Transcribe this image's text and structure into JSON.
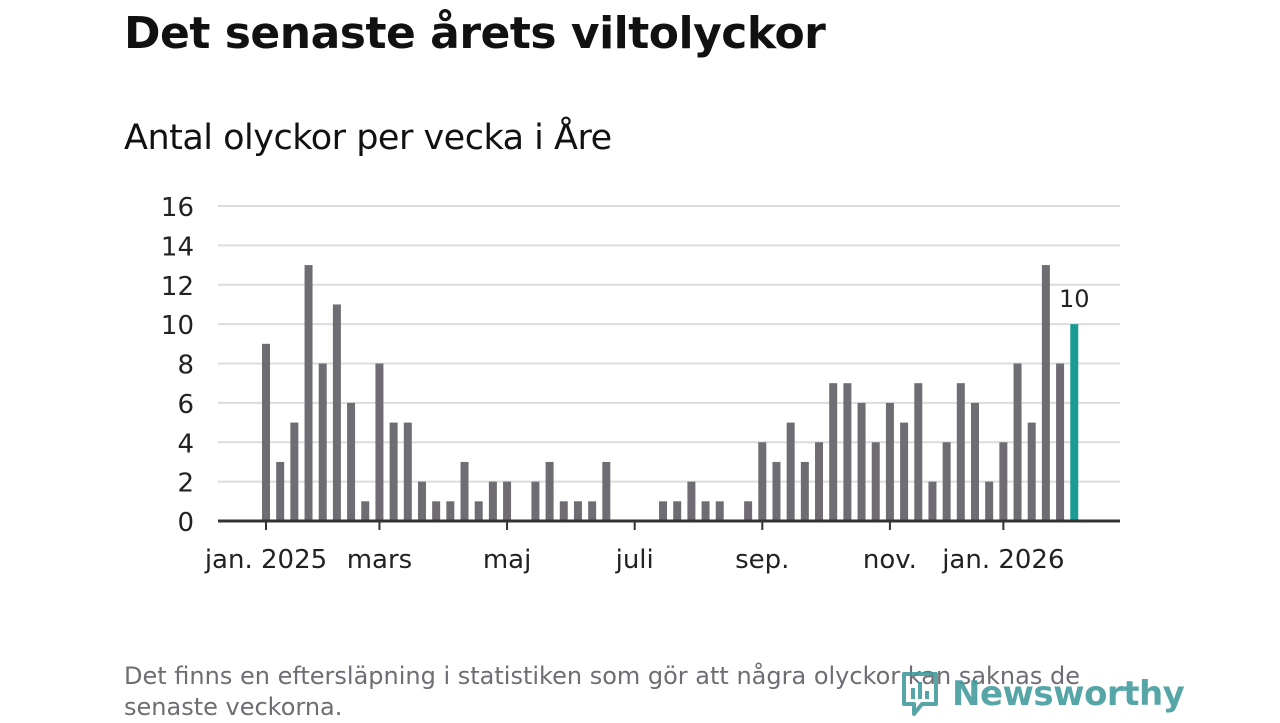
{
  "header": {
    "title": "Det senaste årets viltolyckor",
    "subtitle": "Antal olyckor per vecka i Åre"
  },
  "chart_data": {
    "type": "bar",
    "ylim": [
      0,
      16
    ],
    "yticks": [
      0,
      2,
      4,
      6,
      8,
      10,
      12,
      14,
      16
    ],
    "grid": true,
    "values": [
      9,
      3,
      5,
      13,
      8,
      11,
      6,
      1,
      8,
      5,
      5,
      2,
      1,
      1,
      3,
      1,
      2,
      2,
      0,
      2,
      3,
      1,
      1,
      1,
      3,
      0,
      0,
      0,
      1,
      1,
      2,
      1,
      1,
      0,
      1,
      4,
      3,
      5,
      3,
      4,
      7,
      7,
      6,
      4,
      6,
      5,
      7,
      2,
      4,
      7,
      6,
      2,
      4,
      8,
      5,
      13,
      8,
      10
    ],
    "month_ticks": [
      {
        "label": "jan. 2025",
        "bar_index": 0
      },
      {
        "label": "mars",
        "bar_index": 8
      },
      {
        "label": "maj",
        "bar_index": 17
      },
      {
        "label": "juli",
        "bar_index": 26
      },
      {
        "label": "sep.",
        "bar_index": 35
      },
      {
        "label": "nov.",
        "bar_index": 44
      },
      {
        "label": "jan. 2026",
        "bar_index": 52
      }
    ],
    "highlight": {
      "bar_index": 57,
      "label": "10"
    },
    "colors": {
      "bar": "#6f6d73",
      "highlight": "#1a9c95",
      "grid": "#dcdcdc",
      "axis": "#333333",
      "text": "#222222"
    }
  },
  "footnote": "Det finns en eftersläpning i statistiken som gör att några olyckor kan saknas de senaste veckorna.",
  "logo": {
    "text": "Newsworthy"
  }
}
